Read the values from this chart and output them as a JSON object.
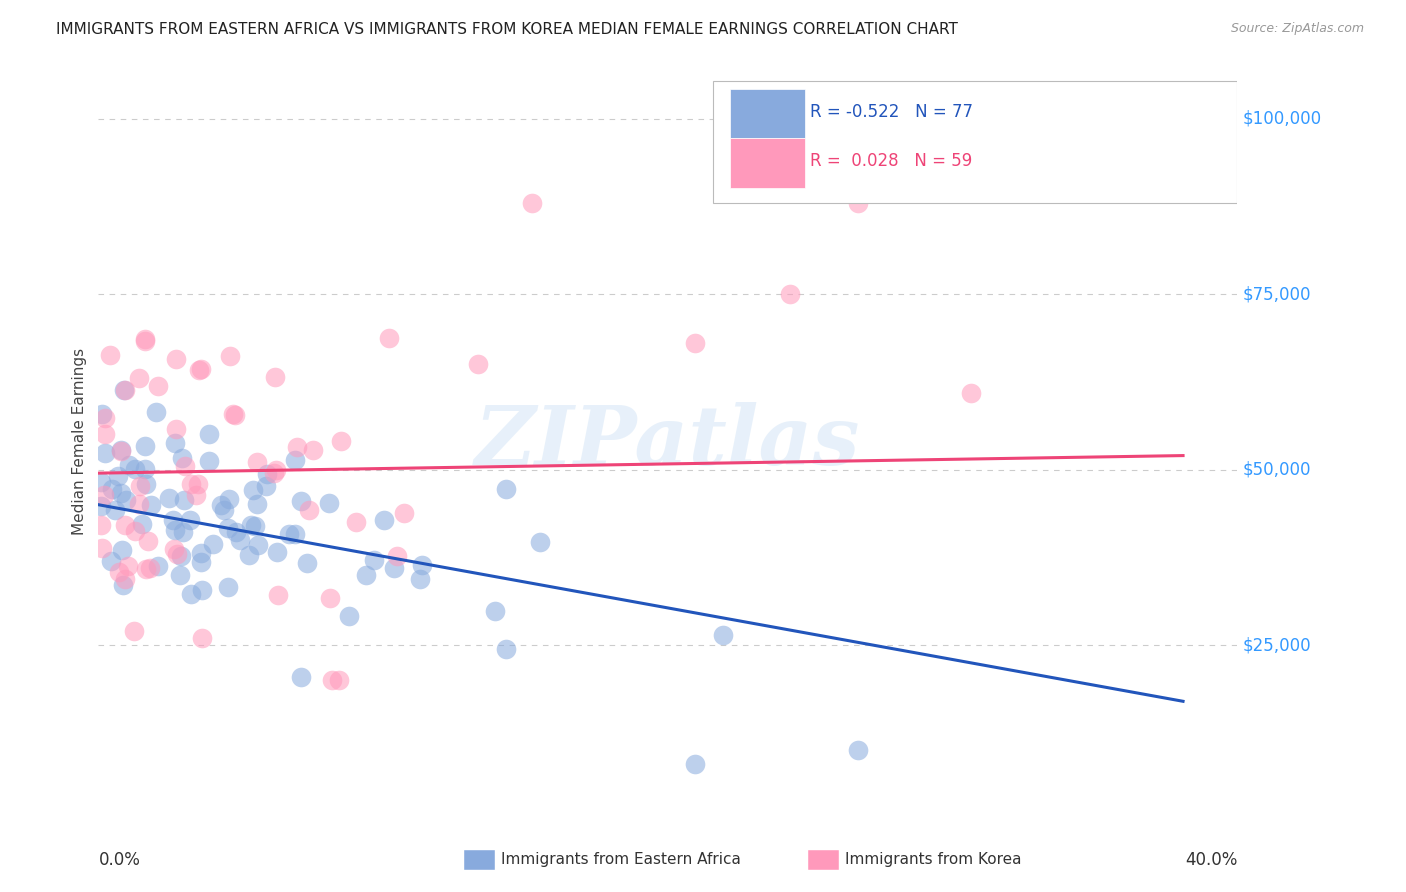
{
  "title": "IMMIGRANTS FROM EASTERN AFRICA VS IMMIGRANTS FROM KOREA MEDIAN FEMALE EARNINGS CORRELATION CHART",
  "source": "Source: ZipAtlas.com",
  "ylabel": "Median Female Earnings",
  "xlim": [
    0.0,
    0.42
  ],
  "ylim": [
    0,
    108000
  ],
  "watermark": "ZIPatlas",
  "legend_r_blue": "-0.522",
  "legend_n_blue": "77",
  "legend_r_pink": "0.028",
  "legend_n_pink": "59",
  "blue_color": "#88AADD",
  "pink_color": "#FF99BB",
  "blue_line_color": "#2255BB",
  "pink_line_color": "#EE4477",
  "ytick_color": "#3399FF",
  "background_color": "#FFFFFF",
  "grid_color": "#CCCCCC",
  "blue_trend_x0": 0.0,
  "blue_trend_y0": 45000,
  "blue_trend_x1": 0.4,
  "blue_trend_y1": 17000,
  "pink_trend_x0": 0.0,
  "pink_trend_y0": 49500,
  "pink_trend_x1": 0.4,
  "pink_trend_y1": 52000
}
